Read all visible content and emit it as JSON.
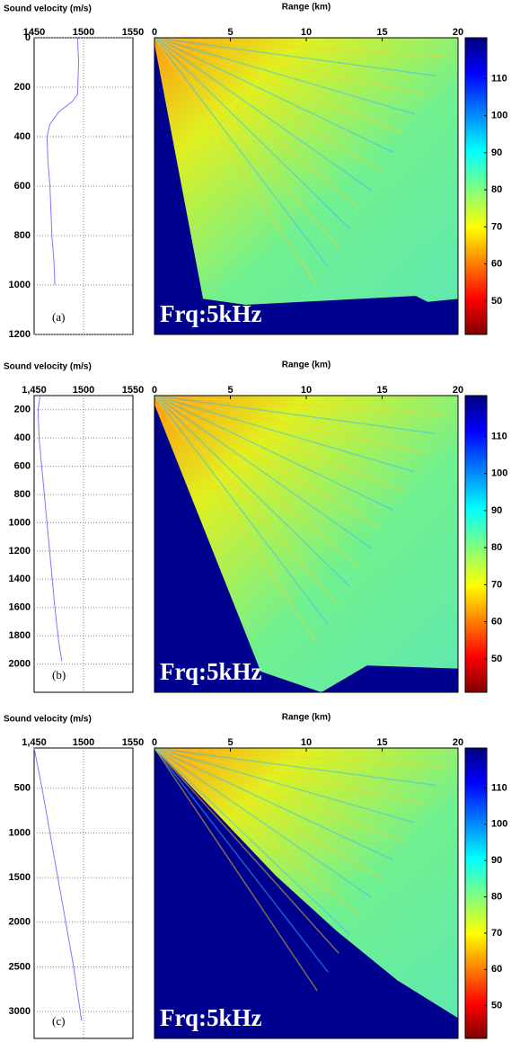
{
  "chart_data": [
    {
      "type": "line",
      "title": "Sound velocity (m/s)",
      "annotation": "(a)",
      "color": "#7a7aff",
      "grid": true,
      "x": [
        1494,
        1495,
        1494,
        1488,
        1475,
        1466,
        1463,
        1464,
        1466,
        1468,
        1470,
        1471
      ],
      "y": [
        0,
        100,
        230,
        260,
        300,
        350,
        400,
        500,
        600,
        800,
        900,
        1000
      ],
      "xlim": [
        1450,
        1550
      ],
      "xticks": [
        1450,
        1500,
        1550
      ],
      "ylim": [
        0,
        1200
      ],
      "yticks": [
        0,
        200,
        400,
        600,
        800,
        1000,
        1200
      ]
    },
    {
      "type": "heatmap",
      "xlabel": "Range (km)",
      "annotation": "Frq:5kHz",
      "xlim": [
        0,
        20
      ],
      "xticks": [
        0,
        5,
        10,
        15,
        20
      ],
      "clim": [
        41,
        121
      ],
      "cticks": [
        50,
        60,
        70,
        80,
        90,
        100,
        110
      ]
    },
    {
      "type": "line",
      "title": "Sound velocity (m/s)",
      "annotation": "(b)",
      "color": "#7a7aff",
      "grid": true,
      "x": [
        1456,
        1454,
        1455,
        1459,
        1463,
        1467,
        1471,
        1475,
        1478
      ],
      "y": [
        100,
        200,
        400,
        700,
        1000,
        1300,
        1600,
        1850,
        1980
      ],
      "xlim": [
        1450,
        1550
      ],
      "xticks": [
        {
          "value": 1450,
          "label": "1,450"
        },
        1500,
        1550
      ],
      "ylim": [
        100,
        2200
      ],
      "yticks": [
        200,
        400,
        600,
        800,
        1000,
        1200,
        1400,
        1600,
        1800,
        2000
      ]
    },
    {
      "type": "heatmap",
      "xlabel": "Range (km)",
      "annotation": "Frq:5kHz",
      "xlim": [
        0,
        20
      ],
      "xticks": [
        0,
        5,
        10,
        15,
        20
      ],
      "clim": [
        41,
        121
      ],
      "cticks": [
        50,
        60,
        70,
        80,
        90,
        100,
        110
      ]
    },
    {
      "type": "line",
      "title": "Sound velocity (m/s)",
      "annotation": "(c)",
      "color": "#7a7aff",
      "grid": true,
      "x": [
        1450,
        1458,
        1466,
        1474,
        1482,
        1490,
        1498
      ],
      "y": [
        50,
        500,
        1000,
        1500,
        2000,
        2500,
        3100
      ],
      "xlim": [
        1450,
        1550
      ],
      "xticks": [
        {
          "value": 1450,
          "label": "1,450"
        },
        1500,
        1550
      ],
      "ylim": [
        50,
        3300
      ],
      "yticks": [
        500,
        1000,
        1500,
        2000,
        2500,
        3000
      ]
    },
    {
      "type": "heatmap",
      "xlabel": "Range (km)",
      "annotation": "Frq:5kHz",
      "xlim": [
        0,
        20
      ],
      "xticks": [
        0,
        5,
        10,
        15,
        20
      ],
      "clim": [
        41,
        121
      ],
      "cticks": [
        50,
        60,
        70,
        80,
        90,
        100,
        110
      ]
    }
  ]
}
